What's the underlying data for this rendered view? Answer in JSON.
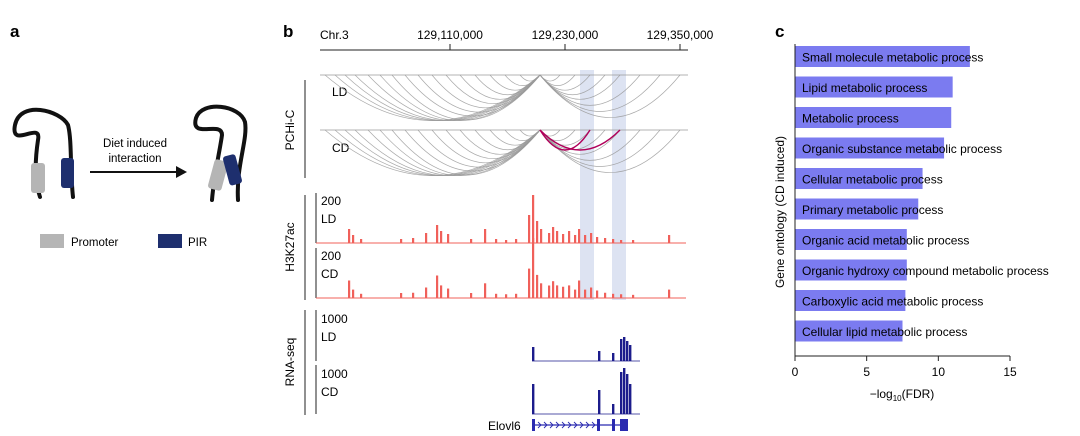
{
  "panels": {
    "a": {
      "letter": "a",
      "arrow_label_line1": "Diet induced",
      "arrow_label_line2": "interaction",
      "legend": [
        {
          "label": "Promoter",
          "color": "#b5b5b5"
        },
        {
          "label": "PIR",
          "color": "#1e2f6e"
        }
      ]
    },
    "b": {
      "letter": "b",
      "chrom": "Chr.3",
      "coords": [
        "129,110,000",
        "129,230,000",
        "129,350,000"
      ],
      "track_groups": {
        "pchic": "PCHi-C",
        "h3k27ac": "H3K27ac",
        "rnaseq": "RNA-seq"
      },
      "conditions": {
        "ld": "LD",
        "cd": "CD"
      },
      "h3k27ac_max": "200",
      "rnaseq_max": "1000",
      "gene": "Elovl6",
      "colors": {
        "arc": "#9a9a9a",
        "arc_highlight": "#b0005a",
        "chip": "#f0605a",
        "rna": "#1c1c8c",
        "highlight": "#dde3f2"
      }
    },
    "c": {
      "letter": "c",
      "ylabel": "Gene ontology (CD induced)",
      "xlabel_prefix": "−log",
      "xlabel_sub": "10",
      "xlabel_suffix": "(FDR)",
      "bar_color": "#7b7bf0"
    }
  },
  "chart_data": {
    "type": "bar",
    "orientation": "horizontal",
    "categories": [
      "Small molecule metabolic process",
      "Lipid metabolic process",
      "Metabolic process",
      "Organic substance metabolic process",
      "Cellular metabolic process",
      "Primary metabolic process",
      "Organic acid metabolic process",
      "Organic hydroxy compound metabolic process",
      "Carboxylic acid metabolic process",
      "Cellular lipid metabolic process"
    ],
    "values": [
      12.2,
      11.0,
      10.9,
      10.4,
      8.9,
      8.6,
      7.8,
      7.8,
      7.7,
      7.5
    ],
    "xlabel": "−log10(FDR)",
    "ylabel": "Gene ontology (CD induced)",
    "xlim": [
      0,
      15
    ],
    "xticks": [
      "0",
      "5",
      "10",
      "15"
    ],
    "grid": false
  }
}
